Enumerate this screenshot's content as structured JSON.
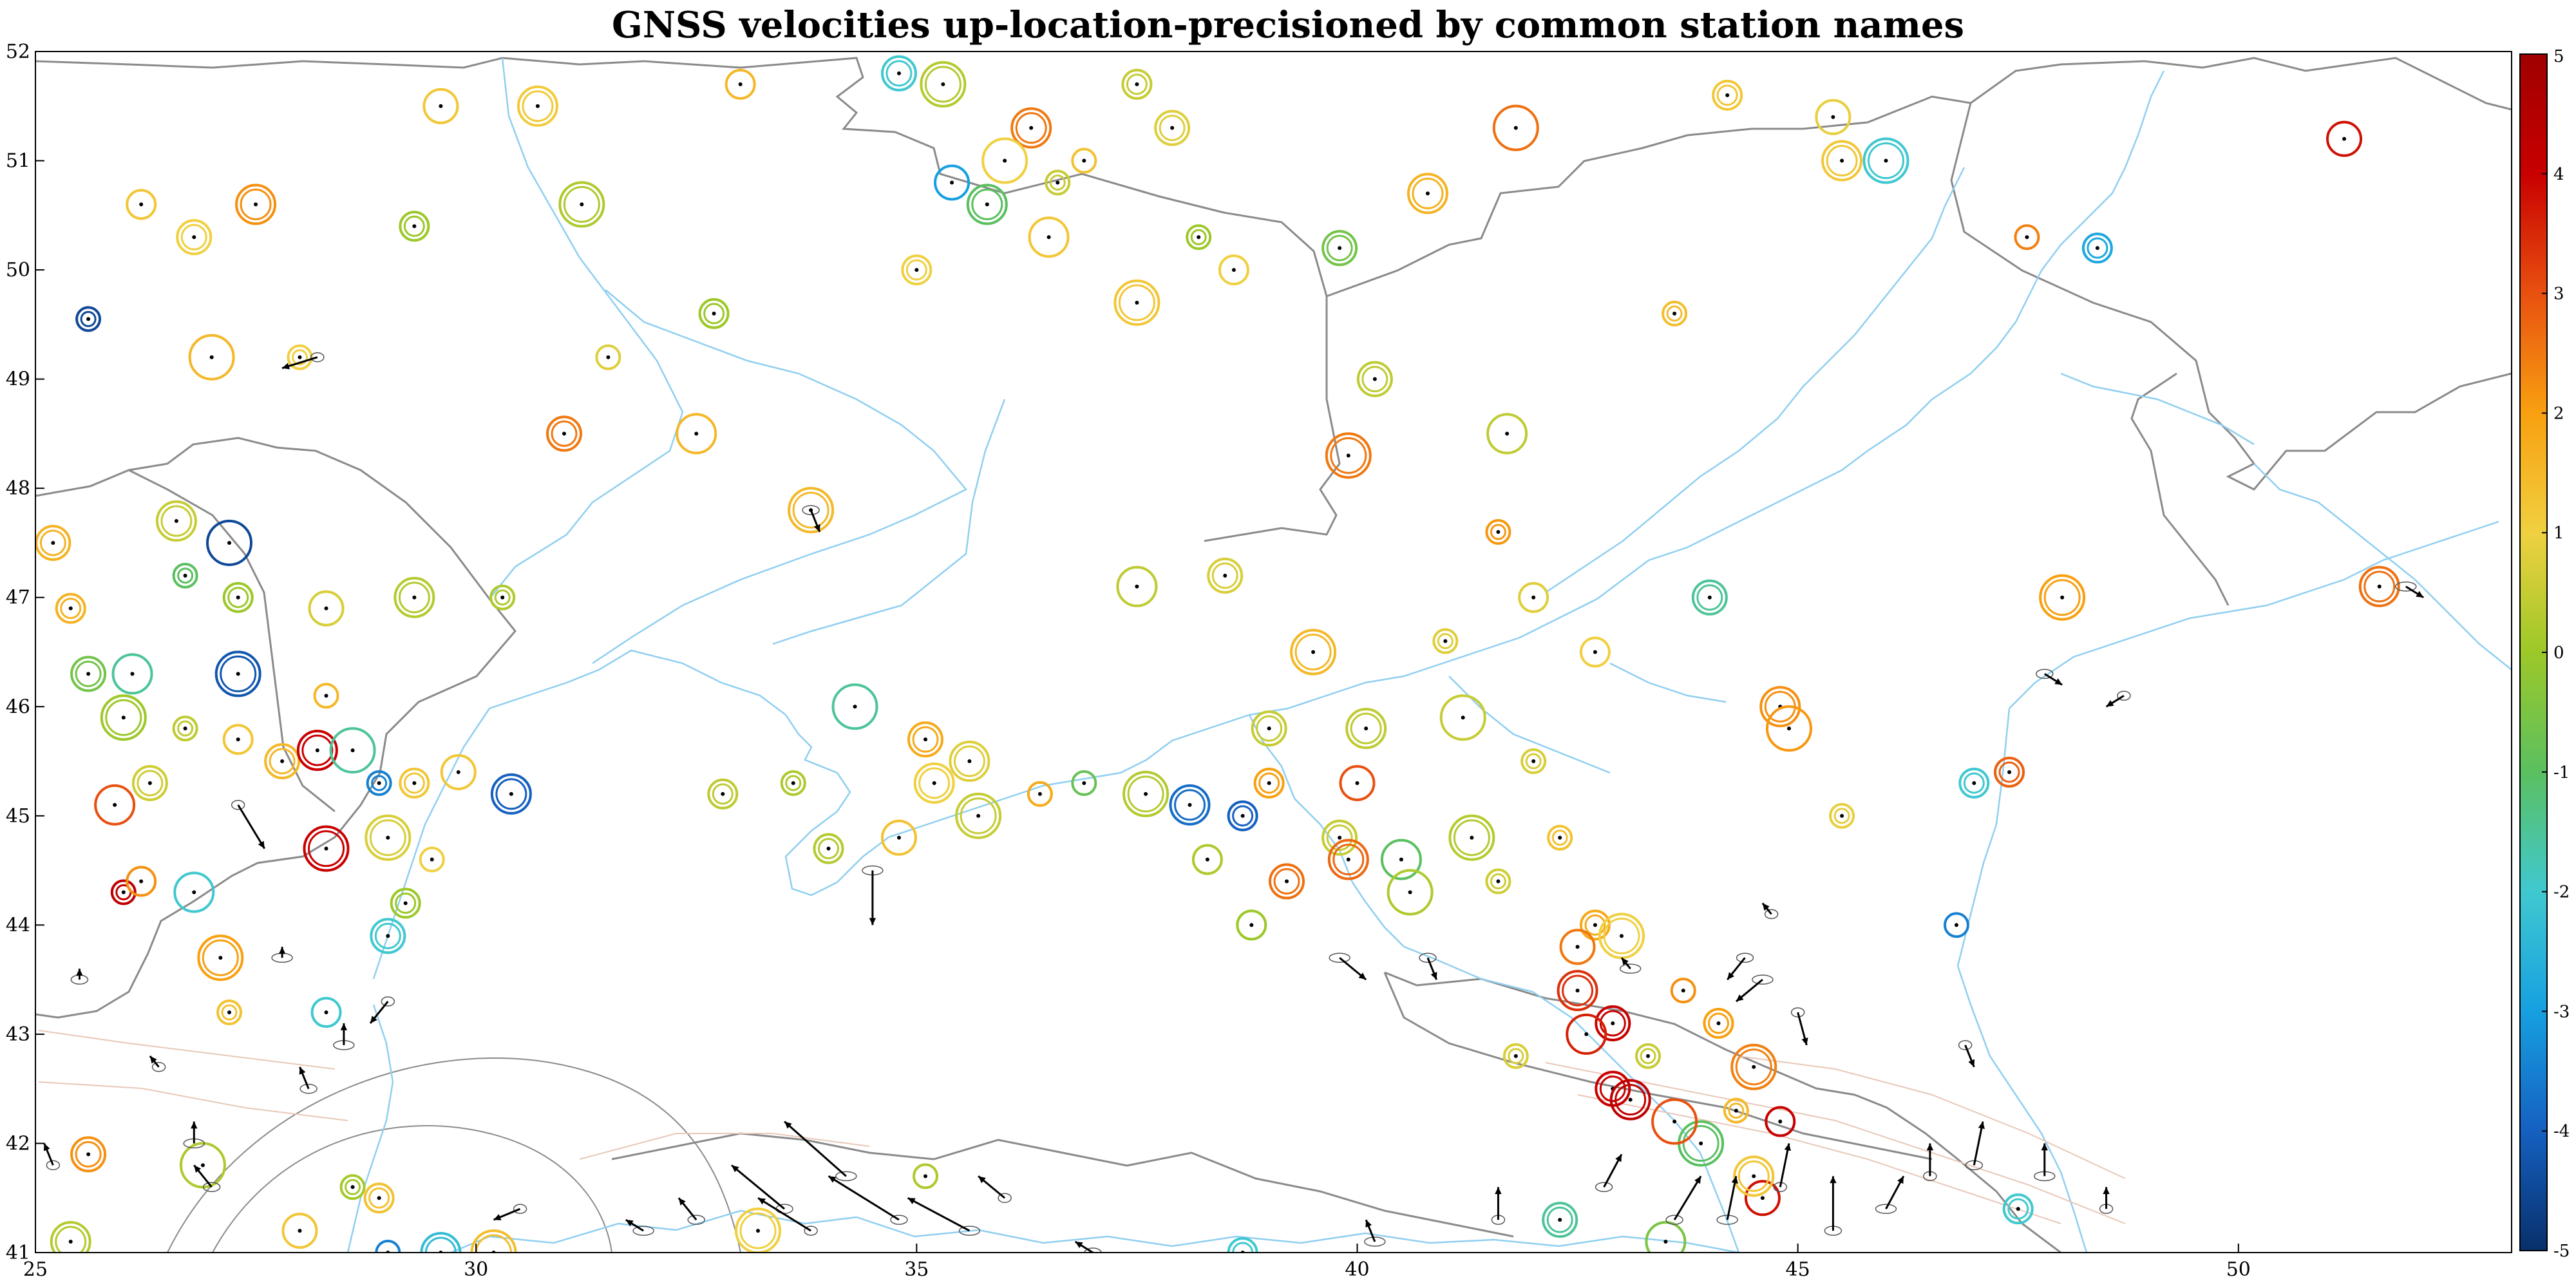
{
  "title": "GNSS velocities up-location-precisioned by common station names",
  "map": {
    "x_ticks": [
      "25",
      "30",
      "35",
      "40",
      "45",
      "50"
    ],
    "y_ticks": [
      "41",
      "42",
      "43",
      "44",
      "45",
      "46",
      "47",
      "48",
      "49",
      "50",
      "51",
      "52"
    ],
    "lon_range": [
      25,
      53.1
    ],
    "lat_range": [
      41,
      52
    ],
    "colors": {
      "border": "#8a8a8a",
      "river": "#8fcff0",
      "fault": "#e8c8b8",
      "arrow": "#000000",
      "ellipse": "#555555"
    }
  },
  "colorbar": {
    "ticks": [
      "5",
      "4",
      "3",
      "2",
      "1",
      "0",
      "-1",
      "-2",
      "-3",
      "-4",
      "-5"
    ],
    "range": [
      -5,
      5
    ],
    "stops": [
      "#08306b",
      "#1560c0",
      "#16a0e0",
      "#40c8d0",
      "#5ac060",
      "#9cc828",
      "#f0d040",
      "#f8a010",
      "#e85010",
      "#c80000",
      "#a00000"
    ]
  },
  "stations": [
    {
      "lon": 25.6,
      "lat": 49.55,
      "v": -4.5
    },
    {
      "lon": 26.2,
      "lat": 50.6,
      "v": 1.2
    },
    {
      "lon": 26.8,
      "lat": 50.3,
      "v": 1.0
    },
    {
      "lon": 27.5,
      "lat": 50.6,
      "v": 2.2
    },
    {
      "lon": 27.0,
      "lat": 49.2,
      "v": 1.5
    },
    {
      "lon": 28.0,
      "lat": 49.2,
      "v": 1.0
    },
    {
      "lon": 29.3,
      "lat": 50.4,
      "v": 0.0
    },
    {
      "lon": 29.6,
      "lat": 51.5,
      "v": 1.2
    },
    {
      "lon": 30.7,
      "lat": 51.5,
      "v": 1.1
    },
    {
      "lon": 31.2,
      "lat": 50.6,
      "v": 0.2
    },
    {
      "lon": 31.5,
      "lat": 49.2,
      "v": 0.8
    },
    {
      "lon": 32.7,
      "lat": 49.6,
      "v": 0.0
    },
    {
      "lon": 31.0,
      "lat": 48.5,
      "v": 2.5
    },
    {
      "lon": 32.5,
      "lat": 48.5,
      "v": 1.5
    },
    {
      "lon": 33.8,
      "lat": 47.8,
      "v": 1.5
    },
    {
      "lon": 30.3,
      "lat": 47.0,
      "v": 0.2
    },
    {
      "lon": 33.0,
      "lat": 51.7,
      "v": 1.5
    },
    {
      "lon": 34.8,
      "lat": 51.8,
      "v": -2.0
    },
    {
      "lon": 36.3,
      "lat": 51.3,
      "v": 2.5
    },
    {
      "lon": 36.0,
      "lat": 51.0,
      "v": 1.0
    },
    {
      "lon": 36.6,
      "lat": 50.8,
      "v": 0.5
    },
    {
      "lon": 35.0,
      "lat": 50.0,
      "v": 1.0
    },
    {
      "lon": 35.4,
      "lat": 50.8,
      "v": -3.0
    },
    {
      "lon": 35.8,
      "lat": 50.6,
      "v": -1.0
    },
    {
      "lon": 35.3,
      "lat": 51.7,
      "v": 0.3
    },
    {
      "lon": 36.9,
      "lat": 51.0,
      "v": 1.3
    },
    {
      "lon": 37.5,
      "lat": 51.7,
      "v": 0.5
    },
    {
      "lon": 37.9,
      "lat": 51.3,
      "v": 0.8
    },
    {
      "lon": 36.5,
      "lat": 50.3,
      "v": 1.2
    },
    {
      "lon": 37.5,
      "lat": 49.7,
      "v": 1.2
    },
    {
      "lon": 38.2,
      "lat": 50.3,
      "v": 0.0
    },
    {
      "lon": 38.6,
      "lat": 50.0,
      "v": 1.0
    },
    {
      "lon": 39.8,
      "lat": 50.2,
      "v": -0.6
    },
    {
      "lon": 40.8,
      "lat": 50.7,
      "v": 1.6
    },
    {
      "lon": 41.8,
      "lat": 51.3,
      "v": 2.6
    },
    {
      "lon": 43.6,
      "lat": 49.6,
      "v": 1.4
    },
    {
      "lon": 44.2,
      "lat": 51.6,
      "v": 1.2
    },
    {
      "lon": 45.4,
      "lat": 51.4,
      "v": 0.9
    },
    {
      "lon": 45.5,
      "lat": 51.0,
      "v": 1.2
    },
    {
      "lon": 46.0,
      "lat": 51.0,
      "v": -2.0
    },
    {
      "lon": 47.6,
      "lat": 50.3,
      "v": 2.4
    },
    {
      "lon": 48.4,
      "lat": 50.2,
      "v": -2.8
    },
    {
      "lon": 40.2,
      "lat": 49.0,
      "v": 0.4
    },
    {
      "lon": 41.7,
      "lat": 48.5,
      "v": 0.4
    },
    {
      "lon": 39.9,
      "lat": 48.3,
      "v": 2.5
    },
    {
      "lon": 41.6,
      "lat": 47.6,
      "v": 2.1
    },
    {
      "lon": 42.0,
      "lat": 47.0,
      "v": 0.8
    },
    {
      "lon": 44.0,
      "lat": 47.0,
      "v": -1.5
    },
    {
      "lon": 44.8,
      "lat": 46.0,
      "v": 2.2
    },
    {
      "lon": 44.9,
      "lat": 45.8,
      "v": 2.1
    },
    {
      "lon": 45.5,
      "lat": 45.0,
      "v": 0.9
    },
    {
      "lon": 47.0,
      "lat": 45.3,
      "v": -2.0
    },
    {
      "lon": 51.2,
      "lat": 51.2,
      "v": 3.8
    },
    {
      "lon": 51.6,
      "lat": 47.1,
      "v": 2.6
    },
    {
      "lon": 48.0,
      "lat": 47.0,
      "v": 2.0
    },
    {
      "lon": 46.8,
      "lat": 44.0,
      "v": -3.5
    },
    {
      "lon": 47.4,
      "lat": 45.4,
      "v": 2.8
    },
    {
      "lon": 38.5,
      "lat": 47.2,
      "v": 0.7
    },
    {
      "lon": 37.5,
      "lat": 47.1,
      "v": 0.4
    },
    {
      "lon": 39.5,
      "lat": 46.5,
      "v": 1.5
    },
    {
      "lon": 41.0,
      "lat": 46.6,
      "v": 0.8
    },
    {
      "lon": 42.7,
      "lat": 46.5,
      "v": 1.0
    },
    {
      "lon": 39.0,
      "lat": 45.8,
      "v": 0.5
    },
    {
      "lon": 40.1,
      "lat": 45.8,
      "v": 0.4
    },
    {
      "lon": 41.2,
      "lat": 45.9,
      "v": 0.5
    },
    {
      "lon": 42.0,
      "lat": 45.5,
      "v": 0.7
    },
    {
      "lon": 39.0,
      "lat": 45.3,
      "v": 2.0
    },
    {
      "lon": 40.0,
      "lat": 45.3,
      "v": 3.0
    },
    {
      "lon": 38.1,
      "lat": 45.1,
      "v": -3.8
    },
    {
      "lon": 37.6,
      "lat": 45.2,
      "v": 0.3
    },
    {
      "lon": 36.9,
      "lat": 45.3,
      "v": -0.8
    },
    {
      "lon": 38.7,
      "lat": 45.0,
      "v": -4.0
    },
    {
      "lon": 39.8,
      "lat": 44.8,
      "v": 0.5
    },
    {
      "lon": 40.5,
      "lat": 44.6,
      "v": -1.0
    },
    {
      "lon": 41.3,
      "lat": 44.8,
      "v": 0.3
    },
    {
      "lon": 42.3,
      "lat": 44.8,
      "v": 1.3
    },
    {
      "lon": 38.3,
      "lat": 44.6,
      "v": 0.2
    },
    {
      "lon": 39.2,
      "lat": 44.4,
      "v": 2.6
    },
    {
      "lon": 39.9,
      "lat": 44.6,
      "v": 2.7
    },
    {
      "lon": 40.6,
      "lat": 44.3,
      "v": 0.2
    },
    {
      "lon": 41.6,
      "lat": 44.4,
      "v": 0.6
    },
    {
      "lon": 42.7,
      "lat": 44.0,
      "v": 1.8
    },
    {
      "lon": 42.5,
      "lat": 43.8,
      "v": 2.5
    },
    {
      "lon": 42.5,
      "lat": 43.4,
      "v": 3.4
    },
    {
      "lon": 43.0,
      "lat": 43.9,
      "v": 1.0
    },
    {
      "lon": 43.7,
      "lat": 43.4,
      "v": 2.2
    },
    {
      "lon": 44.1,
      "lat": 43.1,
      "v": 2.0
    },
    {
      "lon": 42.9,
      "lat": 43.1,
      "v": 4.0
    },
    {
      "lon": 42.6,
      "lat": 43.0,
      "v": 3.6
    },
    {
      "lon": 44.5,
      "lat": 42.7,
      "v": 2.4
    },
    {
      "lon": 41.8,
      "lat": 42.8,
      "v": 0.7
    },
    {
      "lon": 38.8,
      "lat": 44.0,
      "v": 0.0
    },
    {
      "lon": 35.1,
      "lat": 45.7,
      "v": 1.8
    },
    {
      "lon": 35.6,
      "lat": 45.5,
      "v": 0.8
    },
    {
      "lon": 34.3,
      "lat": 46.0,
      "v": -1.5
    },
    {
      "lon": 33.6,
      "lat": 45.3,
      "v": 0.2
    },
    {
      "lon": 34.0,
      "lat": 44.7,
      "v": 0.3
    },
    {
      "lon": 34.8,
      "lat": 44.8,
      "v": 1.3
    },
    {
      "lon": 35.2,
      "lat": 45.3,
      "v": 1.0
    },
    {
      "lon": 35.7,
      "lat": 45.0,
      "v": 0.5
    },
    {
      "lon": 36.4,
      "lat": 45.2,
      "v": 1.8
    },
    {
      "lon": 32.8,
      "lat": 45.2,
      "v": 0.4
    },
    {
      "lon": 25.6,
      "lat": 46.3,
      "v": -0.6
    },
    {
      "lon": 26.1,
      "lat": 46.3,
      "v": -1.5
    },
    {
      "lon": 26.0,
      "lat": 45.9,
      "v": 0.0
    },
    {
      "lon": 26.7,
      "lat": 45.8,
      "v": 0.4
    },
    {
      "lon": 27.3,
      "lat": 45.7,
      "v": 1.2
    },
    {
      "lon": 27.8,
      "lat": 45.5,
      "v": 1.5
    },
    {
      "lon": 28.2,
      "lat": 45.6,
      "v": 4.0
    },
    {
      "lon": 28.6,
      "lat": 45.6,
      "v": -1.5
    },
    {
      "lon": 28.9,
      "lat": 45.3,
      "v": -3.5
    },
    {
      "lon": 29.3,
      "lat": 45.3,
      "v": 1.2
    },
    {
      "lon": 29.8,
      "lat": 45.4,
      "v": 1.2
    },
    {
      "lon": 30.4,
      "lat": 45.2,
      "v": -4.0
    },
    {
      "lon": 29.0,
      "lat": 44.8,
      "v": 0.7
    },
    {
      "lon": 29.5,
      "lat": 44.6,
      "v": 1.0
    },
    {
      "lon": 29.2,
      "lat": 44.2,
      "v": 0.0
    },
    {
      "lon": 29.0,
      "lat": 43.9,
      "v": -2.0
    },
    {
      "lon": 25.9,
      "lat": 45.1,
      "v": 3.0
    },
    {
      "lon": 28.3,
      "lat": 44.7,
      "v": 4.0
    },
    {
      "lon": 26.0,
      "lat": 44.3,
      "v": 4.3
    },
    {
      "lon": 26.2,
      "lat": 44.4,
      "v": 2.2
    },
    {
      "lon": 25.2,
      "lat": 47.5,
      "v": 1.6
    },
    {
      "lon": 26.6,
      "lat": 47.7,
      "v": 0.5
    },
    {
      "lon": 27.2,
      "lat": 47.5,
      "v": -4.5
    },
    {
      "lon": 26.7,
      "lat": 47.2,
      "v": -1.0
    },
    {
      "lon": 27.3,
      "lat": 47.0,
      "v": 0.0
    },
    {
      "lon": 28.3,
      "lat": 46.9,
      "v": 0.7
    },
    {
      "lon": 29.3,
      "lat": 47.0,
      "v": 0.3
    },
    {
      "lon": 27.3,
      "lat": 46.3,
      "v": -4.2
    },
    {
      "lon": 28.3,
      "lat": 46.1,
      "v": 1.5
    },
    {
      "lon": 25.4,
      "lat": 46.9,
      "v": 1.6
    },
    {
      "lon": 26.3,
      "lat": 45.3,
      "v": 0.6
    },
    {
      "lon": 26.8,
      "lat": 44.3,
      "v": -2.0
    },
    {
      "lon": 27.1,
      "lat": 43.7,
      "v": 2.0
    },
    {
      "lon": 27.2,
      "lat": 43.2,
      "v": 1.3
    },
    {
      "lon": 28.3,
      "lat": 43.2,
      "v": -2.0
    },
    {
      "lon": 25.6,
      "lat": 41.9,
      "v": 2.2
    },
    {
      "lon": 25.4,
      "lat": 41.1,
      "v": 0.3
    },
    {
      "lon": 26.9,
      "lat": 41.8,
      "v": 0.2
    },
    {
      "lon": 28.6,
      "lat": 41.6,
      "v": 0.1
    },
    {
      "lon": 28.9,
      "lat": 41.5,
      "v": 1.3
    },
    {
      "lon": 28.0,
      "lat": 41.2,
      "v": 1.2
    },
    {
      "lon": 29.6,
      "lat": 41.0,
      "v": -2.3
    },
    {
      "lon": 30.2,
      "lat": 41.0,
      "v": 1.4
    },
    {
      "lon": 29.0,
      "lat": 41.0,
      "v": -3.5
    },
    {
      "lon": 38.7,
      "lat": 41.0,
      "v": -2.0
    },
    {
      "lon": 42.3,
      "lat": 41.3,
      "v": -1.5
    },
    {
      "lon": 43.5,
      "lat": 41.1,
      "v": -0.5
    },
    {
      "lon": 43.9,
      "lat": 42.0,
      "v": -1.0
    },
    {
      "lon": 44.3,
      "lat": 42.3,
      "v": 1.5
    },
    {
      "lon": 44.8,
      "lat": 42.2,
      "v": 4.0
    },
    {
      "lon": 42.9,
      "lat": 42.5,
      "v": 4.0
    },
    {
      "lon": 43.1,
      "lat": 42.4,
      "v": 4.2
    },
    {
      "lon": 43.6,
      "lat": 42.2,
      "v": 3.0
    },
    {
      "lon": 43.3,
      "lat": 42.8,
      "v": 0.5
    },
    {
      "lon": 47.5,
      "lat": 41.4,
      "v": -2.0
    },
    {
      "lon": 44.6,
      "lat": 41.5,
      "v": 3.8
    },
    {
      "lon": 44.5,
      "lat": 41.7,
      "v": 1.2
    },
    {
      "lon": 33.2,
      "lat": 41.2,
      "v": 1.0
    },
    {
      "lon": 35.1,
      "lat": 41.7,
      "v": 0.2
    }
  ],
  "vectors": [
    {
      "lon": 28.2,
      "lat": 49.2,
      "dx": -0.4,
      "dy": -0.1
    },
    {
      "lon": 33.8,
      "lat": 47.8,
      "dx": 0.1,
      "dy": -0.2
    },
    {
      "lon": 34.5,
      "lat": 44.5,
      "dx": 0.0,
      "dy": -0.5
    },
    {
      "lon": 27.3,
      "lat": 45.1,
      "dx": 0.3,
      "dy": -0.4
    },
    {
      "lon": 44.4,
      "lat": 43.7,
      "dx": -0.2,
      "dy": -0.2
    },
    {
      "lon": 44.6,
      "lat": 43.5,
      "dx": -0.3,
      "dy": -0.2
    },
    {
      "lon": 45.0,
      "lat": 43.2,
      "dx": 0.1,
      "dy": -0.3
    },
    {
      "lon": 40.8,
      "lat": 43.7,
      "dx": 0.1,
      "dy": -0.2
    },
    {
      "lon": 39.8,
      "lat": 43.7,
      "dx": 0.3,
      "dy": -0.2
    },
    {
      "lon": 48.7,
      "lat": 46.1,
      "dx": -0.2,
      "dy": -0.1
    },
    {
      "lon": 47.8,
      "lat": 46.3,
      "dx": 0.2,
      "dy": -0.1
    },
    {
      "lon": 51.9,
      "lat": 47.1,
      "dx": 0.2,
      "dy": -0.1
    },
    {
      "lon": 46.9,
      "lat": 42.9,
      "dx": 0.1,
      "dy": -0.2
    },
    {
      "lon": 43.6,
      "lat": 41.3,
      "dx": 0.3,
      "dy": 0.4
    },
    {
      "lon": 44.2,
      "lat": 41.3,
      "dx": 0.1,
      "dy": 0.4
    },
    {
      "lon": 44.8,
      "lat": 41.6,
      "dx": 0.1,
      "dy": 0.4
    },
    {
      "lon": 45.4,
      "lat": 41.2,
      "dx": 0.0,
      "dy": 0.5
    },
    {
      "lon": 46.0,
      "lat": 41.4,
      "dx": 0.2,
      "dy": 0.3
    },
    {
      "lon": 46.5,
      "lat": 41.7,
      "dx": 0.0,
      "dy": 0.3
    },
    {
      "lon": 47.0,
      "lat": 41.8,
      "dx": 0.1,
      "dy": 0.4
    },
    {
      "lon": 47.8,
      "lat": 41.7,
      "dx": 0.0,
      "dy": 0.3
    },
    {
      "lon": 48.5,
      "lat": 41.4,
      "dx": 0.0,
      "dy": 0.2
    },
    {
      "lon": 33.5,
      "lat": 41.4,
      "dx": -0.6,
      "dy": 0.4
    },
    {
      "lon": 34.2,
      "lat": 41.7,
      "dx": -0.7,
      "dy": 0.5
    },
    {
      "lon": 33.8,
      "lat": 41.2,
      "dx": -0.6,
      "dy": 0.3
    },
    {
      "lon": 34.8,
      "lat": 41.3,
      "dx": -0.8,
      "dy": 0.4
    },
    {
      "lon": 35.6,
      "lat": 41.2,
      "dx": -0.7,
      "dy": 0.3
    },
    {
      "lon": 36.0,
      "lat": 41.5,
      "dx": -0.3,
      "dy": 0.2
    },
    {
      "lon": 32.5,
      "lat": 41.3,
      "dx": -0.2,
      "dy": 0.2
    },
    {
      "lon": 31.9,
      "lat": 41.2,
      "dx": -0.2,
      "dy": 0.1
    },
    {
      "lon": 30.5,
      "lat": 41.4,
      "dx": -0.3,
      "dy": -0.1
    },
    {
      "lon": 27.0,
      "lat": 41.6,
      "dx": -0.2,
      "dy": 0.2
    },
    {
      "lon": 26.8,
      "lat": 42.0,
      "dx": 0.0,
      "dy": 0.2
    },
    {
      "lon": 25.2,
      "lat": 41.8,
      "dx": -0.1,
      "dy": 0.2
    },
    {
      "lon": 28.1,
      "lat": 42.5,
      "dx": -0.1,
      "dy": 0.2
    },
    {
      "lon": 28.5,
      "lat": 42.9,
      "dx": 0.0,
      "dy": 0.2
    },
    {
      "lon": 26.4,
      "lat": 42.7,
      "dx": -0.1,
      "dy": 0.1
    },
    {
      "lon": 25.5,
      "lat": 43.5,
      "dx": 0.0,
      "dy": 0.1
    },
    {
      "lon": 27.8,
      "lat": 43.7,
      "dx": 0.0,
      "dy": 0.1
    },
    {
      "lon": 29.0,
      "lat": 43.3,
      "dx": -0.2,
      "dy": -0.2
    },
    {
      "lon": 37.0,
      "lat": 41.0,
      "dx": -0.2,
      "dy": 0.1
    },
    {
      "lon": 40.2,
      "lat": 41.1,
      "dx": -0.1,
      "dy": 0.2
    },
    {
      "lon": 41.6,
      "lat": 41.3,
      "dx": 0.0,
      "dy": 0.3
    },
    {
      "lon": 42.8,
      "lat": 41.6,
      "dx": 0.2,
      "dy": 0.3
    },
    {
      "lon": 43.1,
      "lat": 43.6,
      "dx": -0.1,
      "dy": 0.1
    },
    {
      "lon": 44.7,
      "lat": 44.1,
      "dx": -0.1,
      "dy": 0.1
    }
  ]
}
